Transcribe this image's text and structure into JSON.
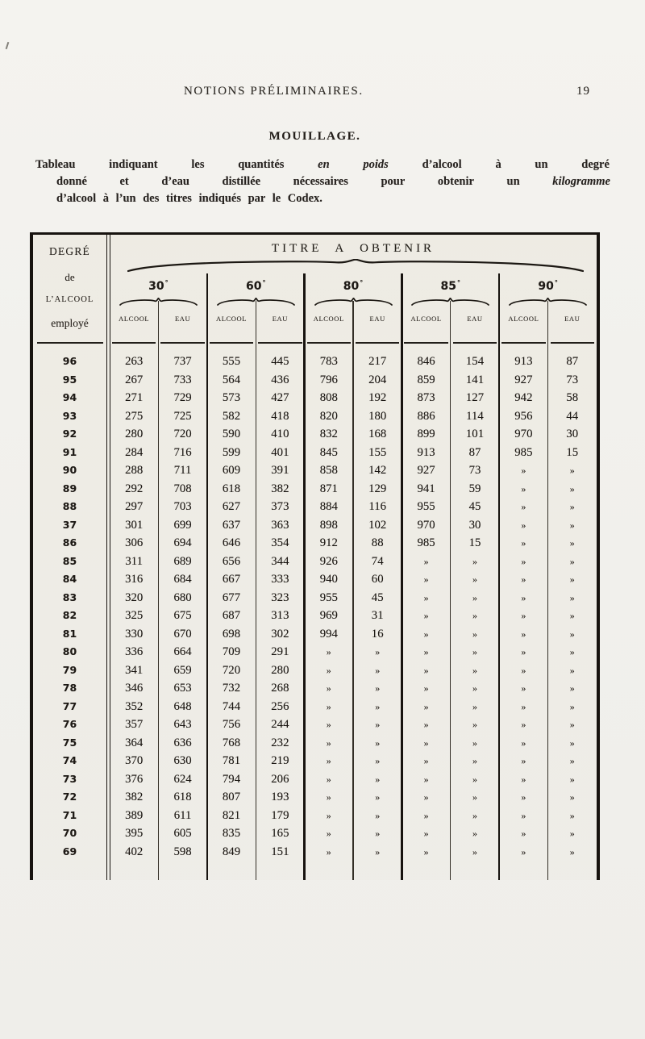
{
  "page_header": {
    "title": "NOTIONS PRÉLIMINAIRES.",
    "page_number": "19"
  },
  "section_title": "MOUILLAGE.",
  "intro": {
    "line1": [
      {
        "t": "Tableau"
      },
      {
        "t": "indiquant"
      },
      {
        "t": "les"
      },
      {
        "t": "quantités"
      },
      {
        "t": "en",
        "i": true
      },
      {
        "t": "poids",
        "i": true
      },
      {
        "t": "d’alcool"
      },
      {
        "t": "à"
      },
      {
        "t": "un"
      },
      {
        "t": "degré"
      }
    ],
    "line2": [
      {
        "t": "donné"
      },
      {
        "t": "et"
      },
      {
        "t": "d’eau"
      },
      {
        "t": "distillée"
      },
      {
        "t": "nécessaires"
      },
      {
        "t": "pour"
      },
      {
        "t": "obtenir"
      },
      {
        "t": "un"
      },
      {
        "t": "kilogramme",
        "i": true
      }
    ],
    "line3": "d’alcool à l’un des titres indiqués par le Codex."
  },
  "table": {
    "corner_lines": [
      "DEGRÉ",
      "de",
      "L’ALCOOL",
      "employé"
    ],
    "span_header": "TITRE A OBTENIR",
    "degree_mark": "°",
    "groups": [
      {
        "label": "30"
      },
      {
        "label": "60"
      },
      {
        "label": "80"
      },
      {
        "label": "85"
      },
      {
        "label": "90"
      }
    ],
    "sub_headers": [
      "ALCOOL",
      "EAU"
    ],
    "empty_mark": "»",
    "rows": [
      {
        "degree": "96",
        "values": [
          "263",
          "737",
          "555",
          "445",
          "783",
          "217",
          "846",
          "154",
          "913",
          "87"
        ]
      },
      {
        "degree": "95",
        "values": [
          "267",
          "733",
          "564",
          "436",
          "796",
          "204",
          "859",
          "141",
          "927",
          "73"
        ]
      },
      {
        "degree": "94",
        "values": [
          "271",
          "729",
          "573",
          "427",
          "808",
          "192",
          "873",
          "127",
          "942",
          "58"
        ]
      },
      {
        "degree": "93",
        "values": [
          "275",
          "725",
          "582",
          "418",
          "820",
          "180",
          "886",
          "114",
          "956",
          "44"
        ]
      },
      {
        "degree": "92",
        "values": [
          "280",
          "720",
          "590",
          "410",
          "832",
          "168",
          "899",
          "101",
          "970",
          "30"
        ]
      },
      {
        "degree": "91",
        "values": [
          "284",
          "716",
          "599",
          "401",
          "845",
          "155",
          "913",
          "87",
          "985",
          "15"
        ]
      },
      {
        "degree": "90",
        "values": [
          "288",
          "711",
          "609",
          "391",
          "858",
          "142",
          "927",
          "73",
          "»",
          "»"
        ]
      },
      {
        "degree": "89",
        "values": [
          "292",
          "708",
          "618",
          "382",
          "871",
          "129",
          "941",
          "59",
          "»",
          "»"
        ]
      },
      {
        "degree": "88",
        "values": [
          "297",
          "703",
          "627",
          "373",
          "884",
          "116",
          "955",
          "45",
          "»",
          "»"
        ]
      },
      {
        "degree": "37",
        "values": [
          "301",
          "699",
          "637",
          "363",
          "898",
          "102",
          "970",
          "30",
          "»",
          "»"
        ]
      },
      {
        "degree": "86",
        "values": [
          "306",
          "694",
          "646",
          "354",
          "912",
          "88",
          "985",
          "15",
          "»",
          "»"
        ]
      },
      {
        "degree": "85",
        "values": [
          "311",
          "689",
          "656",
          "344",
          "926",
          "74",
          "»",
          "»",
          "»",
          "»"
        ]
      },
      {
        "degree": "84",
        "values": [
          "316",
          "684",
          "667",
          "333",
          "940",
          "60",
          "»",
          "»",
          "»",
          "»"
        ]
      },
      {
        "degree": "83",
        "values": [
          "320",
          "680",
          "677",
          "323",
          "955",
          "45",
          "»",
          "»",
          "»",
          "»"
        ]
      },
      {
        "degree": "82",
        "values": [
          "325",
          "675",
          "687",
          "313",
          "969",
          "31",
          "»",
          "»",
          "»",
          "»"
        ]
      },
      {
        "degree": "81",
        "values": [
          "330",
          "670",
          "698",
          "302",
          "994",
          "16",
          "»",
          "»",
          "»",
          "»"
        ]
      },
      {
        "degree": "80",
        "values": [
          "336",
          "664",
          "709",
          "291",
          "»",
          "»",
          "»",
          "»",
          "»",
          "»"
        ]
      },
      {
        "degree": "79",
        "values": [
          "341",
          "659",
          "720",
          "280",
          "»",
          "»",
          "»",
          "»",
          "»",
          "»"
        ]
      },
      {
        "degree": "78",
        "values": [
          "346",
          "653",
          "732",
          "268",
          "»",
          "»",
          "»",
          "»",
          "»",
          "»"
        ]
      },
      {
        "degree": "77",
        "values": [
          "352",
          "648",
          "744",
          "256",
          "»",
          "»",
          "»",
          "»",
          "»",
          "»"
        ]
      },
      {
        "degree": "76",
        "values": [
          "357",
          "643",
          "756",
          "244",
          "»",
          "»",
          "»",
          "»",
          "»",
          "»"
        ]
      },
      {
        "degree": "75",
        "values": [
          "364",
          "636",
          "768",
          "232",
          "»",
          "»",
          "»",
          "»",
          "»",
          "»"
        ]
      },
      {
        "degree": "74",
        "values": [
          "370",
          "630",
          "781",
          "219",
          "»",
          "»",
          "»",
          "»",
          "»",
          "»"
        ]
      },
      {
        "degree": "73",
        "values": [
          "376",
          "624",
          "794",
          "206",
          "»",
          "»",
          "»",
          "»",
          "»",
          "»"
        ]
      },
      {
        "degree": "72",
        "values": [
          "382",
          "618",
          "807",
          "193",
          "»",
          "»",
          "»",
          "»",
          "»",
          "»"
        ]
      },
      {
        "degree": "71",
        "values": [
          "389",
          "611",
          "821",
          "179",
          "»",
          "»",
          "»",
          "»",
          "»",
          "»"
        ]
      },
      {
        "degree": "70",
        "values": [
          "395",
          "605",
          "835",
          "165",
          "»",
          "»",
          "»",
          "»",
          "»",
          "»"
        ]
      },
      {
        "degree": "69",
        "values": [
          "402",
          "598",
          "849",
          "151",
          "»",
          "»",
          "»",
          "»",
          "»",
          "»"
        ]
      }
    ]
  },
  "colors": {
    "ink": "#2a2520",
    "rule": "#17130f",
    "paper": "#f1f0ec"
  }
}
